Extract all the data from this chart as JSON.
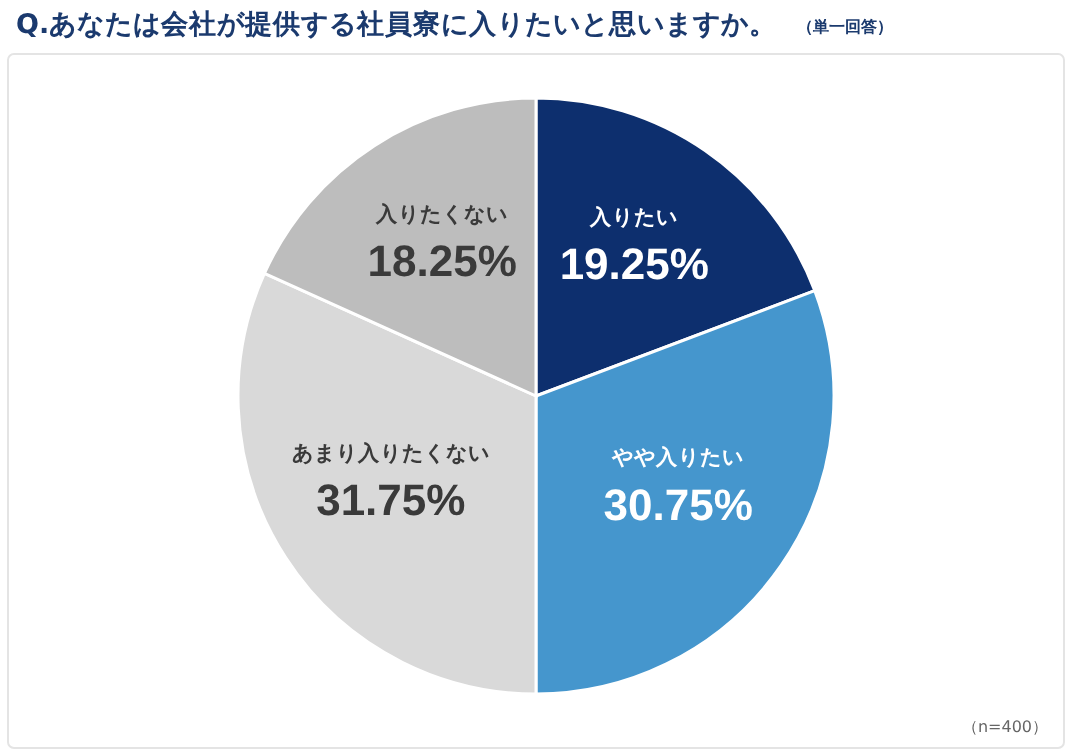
{
  "chart_data": {
    "type": "pie",
    "title": "Q.あなたは会社が提供する社員寮に入りたいと思いますか。",
    "subtitle": "（単一回答）",
    "annotations": [
      "（n=400）"
    ],
    "categories": [
      "入りたい",
      "やや入りたい",
      "あまり入りたくない",
      "入りたくない"
    ],
    "values": [
      19.25,
      30.75,
      31.75,
      18.25
    ],
    "value_labels": [
      "19.25%",
      "30.75%",
      "31.75%",
      "18.25%"
    ],
    "colors": [
      "#0d2f6e",
      "#4596cd",
      "#d9d9d9",
      "#bdbdbd"
    ]
  }
}
